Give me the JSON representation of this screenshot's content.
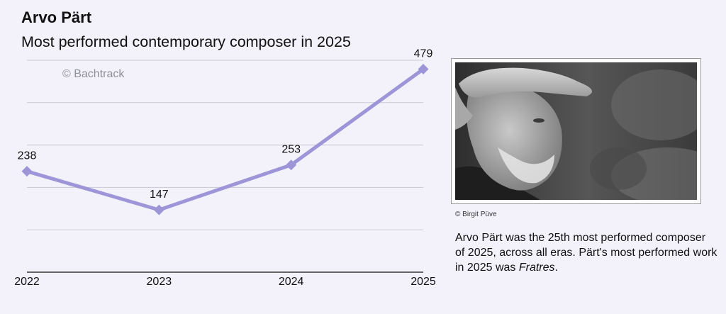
{
  "header": {
    "title": "Arvo Pärt",
    "subtitle": "Most performed contemporary composer in 2025"
  },
  "chart_data": {
    "type": "line",
    "watermark": "© Bachtrack",
    "categories": [
      "2022",
      "2023",
      "2024",
      "2025"
    ],
    "series": [
      {
        "values": [
          238,
          147,
          253,
          479
        ]
      }
    ],
    "data_labels": [
      "238",
      "147",
      "253",
      "479"
    ],
    "ylim": [
      0,
      500
    ],
    "grid": true,
    "line_color": "#9d95d8"
  },
  "photo": {
    "subject": "portrait of Arvo Pärt wearing a cap, black and white",
    "credit": "© Birgit Püve"
  },
  "caption": {
    "text_before": "Arvo Pärt was the 25th most performed composer of 2025, across all eras. Pärt's most performed work in 2025 was ",
    "work": "Fratres",
    "text_after": "."
  }
}
